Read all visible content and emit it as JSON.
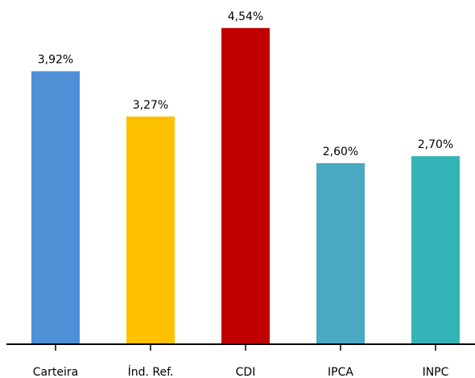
{
  "chart_data": {
    "type": "bar",
    "categories": [
      "Carteira",
      "Índ. Ref.",
      "CDI",
      "IPCA",
      "INPC"
    ],
    "values": [
      3.92,
      3.27,
      4.54,
      2.6,
      2.7
    ],
    "value_labels": [
      "3,92%",
      "3,27%",
      "4,54%",
      "2,60%",
      "2,70%"
    ],
    "colors": [
      "#4f8fd6",
      "#ffc000",
      "#c00000",
      "#4aa8c0",
      "#33b5b8"
    ],
    "ylim": [
      0,
      5
    ]
  }
}
